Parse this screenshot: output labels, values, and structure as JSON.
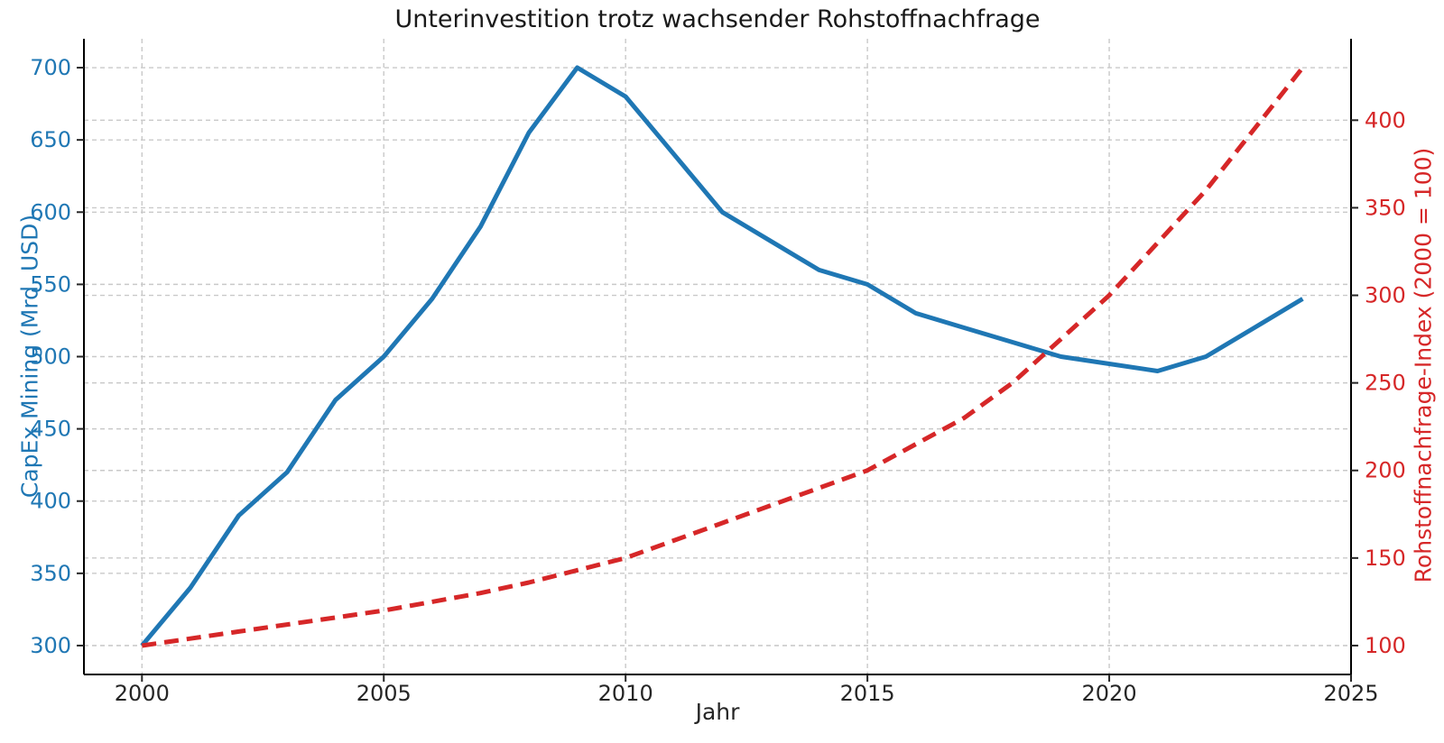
{
  "chart_data": {
    "type": "line",
    "title": "Unterinvestition trotz wachsender Rohstoffnachfrage",
    "xlabel": "Jahr",
    "grid": true,
    "legend": "none",
    "background": "#ffffff",
    "grid_color": "#c9c9c9",
    "spine_color": "#000000",
    "tick_color": "#262626",
    "x": [
      2000,
      2001,
      2002,
      2003,
      2004,
      2005,
      2006,
      2007,
      2008,
      2009,
      2010,
      2011,
      2012,
      2013,
      2014,
      2015,
      2016,
      2017,
      2018,
      2019,
      2020,
      2021,
      2022,
      2023,
      2024
    ],
    "series": [
      {
        "name": "CapEx Mining (Mrd. USD)",
        "axis": "left",
        "color": "#1f77b4",
        "style": "solid",
        "values": [
          300,
          340,
          390,
          420,
          470,
          500,
          540,
          590,
          655,
          700,
          680,
          640,
          600,
          580,
          560,
          550,
          530,
          520,
          510,
          500,
          495,
          490,
          500,
          520,
          540
        ]
      },
      {
        "name": "Rohstoffnachfrage-Index (2000 = 100)",
        "axis": "right",
        "color": "#d62728",
        "style": "dashed",
        "values": [
          100,
          104,
          108,
          112,
          116,
          120,
          125,
          130,
          136,
          143,
          150,
          160,
          170,
          180,
          190,
          200,
          215,
          230,
          250,
          275,
          300,
          330,
          360,
          395,
          430
        ]
      }
    ],
    "axes": {
      "x": {
        "label": "Jahr",
        "ticks": [
          2000,
          2005,
          2010,
          2015,
          2020,
          2025
        ],
        "range": [
          1998.8,
          2025.0
        ]
      },
      "left": {
        "label": "CapEx Mining (Mrd. USD)",
        "color": "#1f77b4",
        "ticks": [
          300,
          350,
          400,
          450,
          500,
          550,
          600,
          650,
          700
        ],
        "range": [
          280,
          720
        ]
      },
      "right": {
        "label": "Rohstoffnachfrage-Index (2000 = 100)",
        "color": "#d62728",
        "ticks": [
          100,
          150,
          200,
          250,
          300,
          350,
          400
        ],
        "range": [
          83.5,
          446.5
        ]
      }
    }
  }
}
